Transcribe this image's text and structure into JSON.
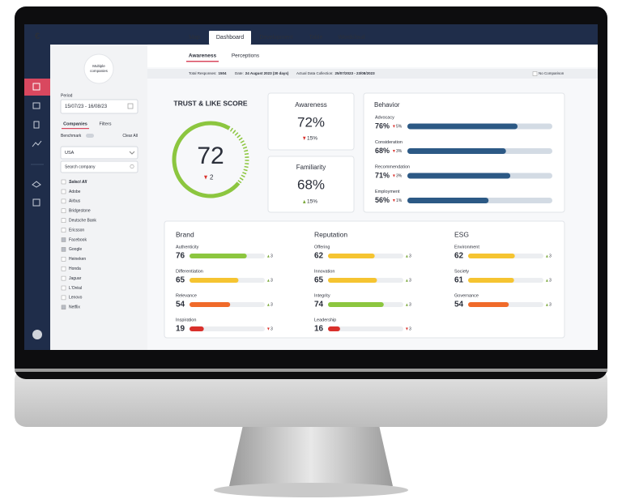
{
  "nav": {
    "logo": "€",
    "tabs": [
      "Map",
      "Dashboard",
      "Development",
      "Table",
      "Wordcloud"
    ],
    "active_tab": 1
  },
  "subtabs": {
    "items": [
      "Awareness",
      "Perceptions"
    ],
    "active": 0
  },
  "sidebar": {
    "avatar": "Multiple companies",
    "period_label": "Period",
    "period": "15/07/23 - 16/08/23",
    "tabs": [
      "Companies",
      "Filters"
    ],
    "benchmark": "Benchmark",
    "clear_all": "Clear All",
    "country": "USA",
    "search": "Search company",
    "select_all": "Select All",
    "companies": [
      {
        "name": "Adobe",
        "checked": false
      },
      {
        "name": "Airbus",
        "checked": false
      },
      {
        "name": "Bridgestone",
        "checked": false
      },
      {
        "name": "Deutsche Bank",
        "checked": false
      },
      {
        "name": "Ericsson",
        "checked": false
      },
      {
        "name": "Facebook",
        "checked": true
      },
      {
        "name": "Google",
        "checked": true
      },
      {
        "name": "Heineken",
        "checked": false
      },
      {
        "name": "Honda",
        "checked": false
      },
      {
        "name": "Jaguar",
        "checked": false
      },
      {
        "name": "L'Oréal",
        "checked": false
      },
      {
        "name": "Lenovo",
        "checked": false
      },
      {
        "name": "Netflix",
        "checked": true
      }
    ]
  },
  "info": {
    "total_label": "Total Responses:",
    "total": "1504",
    "date_label": "Date:",
    "date": "24 August 2023 (30 days)",
    "collection_label": "Actual Data Collection:",
    "collection": "25/07/2023 - 23/08/2023",
    "comparison": "No Comparison"
  },
  "trust": {
    "title": "TRUST & LIKE SCORE",
    "score": 72,
    "change": 2,
    "direction": "down"
  },
  "awareness": {
    "title": "Awareness",
    "value": "72%",
    "change": "15%",
    "direction": "down"
  },
  "familiarity": {
    "title": "Familiarity",
    "value": "68%",
    "change": "15%",
    "direction": "up"
  },
  "behavior": {
    "title": "Behavior",
    "items": [
      {
        "label": "Advocacy",
        "value": 76,
        "value_label": "76%",
        "change": "5%",
        "direction": "down"
      },
      {
        "label": "Consideration",
        "value": 68,
        "value_label": "68%",
        "change": "3%",
        "direction": "down"
      },
      {
        "label": "Recommendation",
        "value": 71,
        "value_label": "71%",
        "change": "3%",
        "direction": "down"
      },
      {
        "label": "Employment",
        "value": 56,
        "value_label": "56%",
        "change": "1%",
        "direction": "down"
      }
    ]
  },
  "groups": [
    {
      "title": "Brand",
      "items": [
        {
          "label": "Authenticity",
          "value": 76,
          "change": 3,
          "direction": "up"
        },
        {
          "label": "Differentiation",
          "value": 65,
          "change": 3,
          "direction": "up"
        },
        {
          "label": "Relevance",
          "value": 54,
          "change": 3,
          "direction": "up"
        },
        {
          "label": "Inspiration",
          "value": 19,
          "change": 3,
          "direction": "down"
        }
      ]
    },
    {
      "title": "Reputation",
      "items": [
        {
          "label": "Offering",
          "value": 62,
          "change": 3,
          "direction": "up"
        },
        {
          "label": "Innovation",
          "value": 65,
          "change": 3,
          "direction": "up"
        },
        {
          "label": "Integrity",
          "value": 74,
          "change": 3,
          "direction": "up"
        },
        {
          "label": "Leadership",
          "value": 16,
          "change": 3,
          "direction": "down"
        }
      ]
    },
    {
      "title": "ESG",
      "items": [
        {
          "label": "Environment",
          "value": 62,
          "change": 3,
          "direction": "up"
        },
        {
          "label": "Society",
          "value": 61,
          "change": 3,
          "direction": "up"
        },
        {
          "label": "Governance",
          "value": 54,
          "change": 3,
          "direction": "up"
        }
      ]
    }
  ]
}
